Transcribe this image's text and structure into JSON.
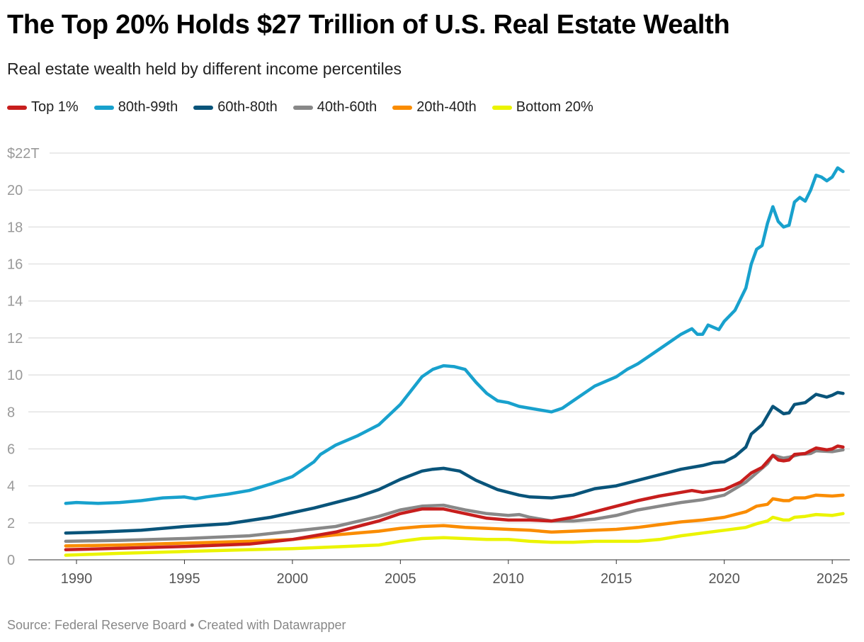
{
  "title": "The Top 20% Holds $27 Trillion of U.S. Real Estate Wealth",
  "subtitle": "Real estate wealth held by different income percentiles",
  "footer": "Source: Federal Reserve Board • Created with Datawrapper",
  "chart_data": {
    "type": "line",
    "title": "The Top 20% Holds $27 Trillion of U.S. Real Estate Wealth",
    "subtitle": "Real estate wealth held by different income percentiles",
    "xlim": [
      1989.5,
      2025.6
    ],
    "ylim": [
      0,
      22
    ],
    "y_ticks": [
      0,
      2,
      4,
      6,
      8,
      10,
      12,
      14,
      16,
      18,
      20,
      22
    ],
    "y_tick_labels": [
      "0",
      "2",
      "4",
      "6",
      "8",
      "10",
      "12",
      "14",
      "16",
      "18",
      "20",
      "$22T"
    ],
    "x_ticks": [
      1990,
      1995,
      2000,
      2005,
      2010,
      2015,
      2020,
      2025
    ],
    "x_tick_labels": [
      "1990",
      "1995",
      "2000",
      "2005",
      "2010",
      "2015",
      "2020",
      "2025"
    ],
    "grid": "horizontal",
    "legend": "top-left",
    "series": [
      {
        "name": "Top 1%",
        "color": "#c71e1d",
        "points": [
          [
            1989.5,
            0.55
          ],
          [
            1992,
            0.62
          ],
          [
            1995,
            0.72
          ],
          [
            1998,
            0.85
          ],
          [
            2000,
            1.1
          ],
          [
            2002,
            1.5
          ],
          [
            2004,
            2.1
          ],
          [
            2005,
            2.5
          ],
          [
            2006,
            2.75
          ],
          [
            2007,
            2.75
          ],
          [
            2008,
            2.5
          ],
          [
            2009,
            2.25
          ],
          [
            2010,
            2.15
          ],
          [
            2011,
            2.15
          ],
          [
            2012,
            2.1
          ],
          [
            2013,
            2.3
          ],
          [
            2014,
            2.6
          ],
          [
            2015,
            2.9
          ],
          [
            2016,
            3.2
          ],
          [
            2017,
            3.45
          ],
          [
            2018,
            3.65
          ],
          [
            2018.5,
            3.75
          ],
          [
            2019,
            3.65
          ],
          [
            2020,
            3.8
          ],
          [
            2020.75,
            4.2
          ],
          [
            2021.25,
            4.7
          ],
          [
            2021.75,
            5.0
          ],
          [
            2022.25,
            5.65
          ],
          [
            2022.5,
            5.4
          ],
          [
            2022.75,
            5.35
          ],
          [
            2023,
            5.4
          ],
          [
            2023.25,
            5.7
          ],
          [
            2023.75,
            5.75
          ],
          [
            2024.25,
            6.05
          ],
          [
            2024.75,
            5.95
          ],
          [
            2025,
            6.0
          ],
          [
            2025.25,
            6.15
          ],
          [
            2025.5,
            6.1
          ]
        ]
      },
      {
        "name": "80th-99th",
        "color": "#18a1cd",
        "points": [
          [
            1989.5,
            3.05
          ],
          [
            1990,
            3.1
          ],
          [
            1991,
            3.05
          ],
          [
            1992,
            3.1
          ],
          [
            1993,
            3.2
          ],
          [
            1994,
            3.35
          ],
          [
            1995,
            3.4
          ],
          [
            1995.5,
            3.3
          ],
          [
            1996,
            3.4
          ],
          [
            1997,
            3.55
          ],
          [
            1998,
            3.75
          ],
          [
            1999,
            4.1
          ],
          [
            2000,
            4.5
          ],
          [
            2001,
            5.3
          ],
          [
            2001.3,
            5.7
          ],
          [
            2002,
            6.2
          ],
          [
            2003,
            6.7
          ],
          [
            2004,
            7.3
          ],
          [
            2005,
            8.4
          ],
          [
            2006,
            9.9
          ],
          [
            2006.5,
            10.3
          ],
          [
            2007,
            10.5
          ],
          [
            2007.5,
            10.45
          ],
          [
            2008,
            10.3
          ],
          [
            2008.5,
            9.6
          ],
          [
            2009,
            9.0
          ],
          [
            2009.5,
            8.6
          ],
          [
            2010,
            8.5
          ],
          [
            2010.5,
            8.3
          ],
          [
            2011,
            8.2
          ],
          [
            2011.5,
            8.1
          ],
          [
            2012,
            8.0
          ],
          [
            2012.5,
            8.2
          ],
          [
            2013,
            8.6
          ],
          [
            2014,
            9.4
          ],
          [
            2015,
            9.9
          ],
          [
            2015.5,
            10.3
          ],
          [
            2016,
            10.6
          ],
          [
            2016.5,
            11.0
          ],
          [
            2017,
            11.4
          ],
          [
            2017.5,
            11.8
          ],
          [
            2018,
            12.2
          ],
          [
            2018.5,
            12.5
          ],
          [
            2018.75,
            12.2
          ],
          [
            2019,
            12.2
          ],
          [
            2019.25,
            12.7
          ],
          [
            2019.75,
            12.45
          ],
          [
            2020,
            12.9
          ],
          [
            2020.5,
            13.5
          ],
          [
            2021,
            14.7
          ],
          [
            2021.25,
            16.0
          ],
          [
            2021.5,
            16.8
          ],
          [
            2021.75,
            17.0
          ],
          [
            2022,
            18.2
          ],
          [
            2022.25,
            19.1
          ],
          [
            2022.5,
            18.3
          ],
          [
            2022.75,
            18.0
          ],
          [
            2023,
            18.1
          ],
          [
            2023.25,
            19.35
          ],
          [
            2023.5,
            19.6
          ],
          [
            2023.75,
            19.4
          ],
          [
            2024,
            20.0
          ],
          [
            2024.25,
            20.8
          ],
          [
            2024.5,
            20.7
          ],
          [
            2024.75,
            20.5
          ],
          [
            2025,
            20.7
          ],
          [
            2025.25,
            21.2
          ],
          [
            2025.5,
            21.0
          ]
        ]
      },
      {
        "name": "60th-80th",
        "color": "#09547a",
        "points": [
          [
            1989.5,
            1.45
          ],
          [
            1991,
            1.5
          ],
          [
            1993,
            1.6
          ],
          [
            1995,
            1.8
          ],
          [
            1997,
            1.95
          ],
          [
            1999,
            2.3
          ],
          [
            2001,
            2.8
          ],
          [
            2003,
            3.4
          ],
          [
            2004,
            3.8
          ],
          [
            2005,
            4.35
          ],
          [
            2006,
            4.8
          ],
          [
            2006.5,
            4.9
          ],
          [
            2007,
            4.95
          ],
          [
            2007.75,
            4.8
          ],
          [
            2008.5,
            4.3
          ],
          [
            2009.5,
            3.8
          ],
          [
            2010.5,
            3.5
          ],
          [
            2011,
            3.4
          ],
          [
            2012,
            3.35
          ],
          [
            2013,
            3.5
          ],
          [
            2014,
            3.85
          ],
          [
            2015,
            4.0
          ],
          [
            2016,
            4.3
          ],
          [
            2017,
            4.6
          ],
          [
            2018,
            4.9
          ],
          [
            2019,
            5.1
          ],
          [
            2019.5,
            5.25
          ],
          [
            2020,
            5.3
          ],
          [
            2020.5,
            5.6
          ],
          [
            2021,
            6.1
          ],
          [
            2021.25,
            6.8
          ],
          [
            2021.75,
            7.3
          ],
          [
            2022.25,
            8.3
          ],
          [
            2022.75,
            7.9
          ],
          [
            2023,
            7.95
          ],
          [
            2023.25,
            8.4
          ],
          [
            2023.75,
            8.5
          ],
          [
            2024.25,
            8.95
          ],
          [
            2024.75,
            8.8
          ],
          [
            2025,
            8.9
          ],
          [
            2025.25,
            9.05
          ],
          [
            2025.5,
            9.0
          ]
        ]
      },
      {
        "name": "40th-60th",
        "color": "#888888",
        "points": [
          [
            1989.5,
            1.0
          ],
          [
            1992,
            1.05
          ],
          [
            1995,
            1.15
          ],
          [
            1998,
            1.3
          ],
          [
            2000,
            1.55
          ],
          [
            2002,
            1.8
          ],
          [
            2004,
            2.35
          ],
          [
            2005,
            2.7
          ],
          [
            2006,
            2.9
          ],
          [
            2007,
            2.95
          ],
          [
            2008,
            2.7
          ],
          [
            2009,
            2.5
          ],
          [
            2010,
            2.4
          ],
          [
            2010.5,
            2.45
          ],
          [
            2011,
            2.3
          ],
          [
            2012,
            2.1
          ],
          [
            2013,
            2.1
          ],
          [
            2014,
            2.2
          ],
          [
            2015,
            2.4
          ],
          [
            2016,
            2.7
          ],
          [
            2017,
            2.9
          ],
          [
            2018,
            3.1
          ],
          [
            2019,
            3.25
          ],
          [
            2020,
            3.5
          ],
          [
            2021,
            4.2
          ],
          [
            2021.5,
            4.7
          ],
          [
            2022,
            5.2
          ],
          [
            2022.25,
            5.65
          ],
          [
            2022.75,
            5.5
          ],
          [
            2023,
            5.55
          ],
          [
            2023.5,
            5.7
          ],
          [
            2024,
            5.75
          ],
          [
            2024.25,
            5.9
          ],
          [
            2025,
            5.85
          ],
          [
            2025.5,
            5.95
          ]
        ]
      },
      {
        "name": "20th-40th",
        "color": "#fa8c00",
        "points": [
          [
            1989.5,
            0.75
          ],
          [
            1992,
            0.8
          ],
          [
            1995,
            0.9
          ],
          [
            1998,
            1.0
          ],
          [
            2000,
            1.1
          ],
          [
            2002,
            1.35
          ],
          [
            2004,
            1.55
          ],
          [
            2005,
            1.7
          ],
          [
            2006,
            1.8
          ],
          [
            2007,
            1.85
          ],
          [
            2008,
            1.75
          ],
          [
            2009,
            1.7
          ],
          [
            2010,
            1.65
          ],
          [
            2011,
            1.6
          ],
          [
            2012,
            1.5
          ],
          [
            2013,
            1.55
          ],
          [
            2014,
            1.6
          ],
          [
            2015,
            1.65
          ],
          [
            2016,
            1.75
          ],
          [
            2017,
            1.9
          ],
          [
            2018,
            2.05
          ],
          [
            2019,
            2.15
          ],
          [
            2020,
            2.3
          ],
          [
            2021,
            2.6
          ],
          [
            2021.5,
            2.9
          ],
          [
            2022,
            3.0
          ],
          [
            2022.25,
            3.3
          ],
          [
            2022.75,
            3.2
          ],
          [
            2023,
            3.2
          ],
          [
            2023.25,
            3.35
          ],
          [
            2023.75,
            3.35
          ],
          [
            2024.25,
            3.5
          ],
          [
            2025,
            3.45
          ],
          [
            2025.5,
            3.5
          ]
        ]
      },
      {
        "name": "Bottom 20%",
        "color": "#ebf400",
        "points": [
          [
            1989.5,
            0.25
          ],
          [
            1992,
            0.35
          ],
          [
            1995,
            0.45
          ],
          [
            1998,
            0.55
          ],
          [
            2000,
            0.6
          ],
          [
            2002,
            0.7
          ],
          [
            2004,
            0.8
          ],
          [
            2005,
            1.0
          ],
          [
            2006,
            1.15
          ],
          [
            2007,
            1.2
          ],
          [
            2008,
            1.15
          ],
          [
            2009,
            1.1
          ],
          [
            2010,
            1.1
          ],
          [
            2011,
            1.0
          ],
          [
            2012,
            0.95
          ],
          [
            2013,
            0.95
          ],
          [
            2014,
            1.0
          ],
          [
            2015,
            1.0
          ],
          [
            2016,
            1.0
          ],
          [
            2017,
            1.1
          ],
          [
            2018,
            1.3
          ],
          [
            2019,
            1.45
          ],
          [
            2020,
            1.6
          ],
          [
            2021,
            1.75
          ],
          [
            2021.5,
            1.95
          ],
          [
            2022,
            2.1
          ],
          [
            2022.25,
            2.3
          ],
          [
            2022.75,
            2.15
          ],
          [
            2023,
            2.15
          ],
          [
            2023.25,
            2.3
          ],
          [
            2023.75,
            2.35
          ],
          [
            2024.25,
            2.45
          ],
          [
            2025,
            2.4
          ],
          [
            2025.5,
            2.5
          ]
        ]
      }
    ]
  }
}
